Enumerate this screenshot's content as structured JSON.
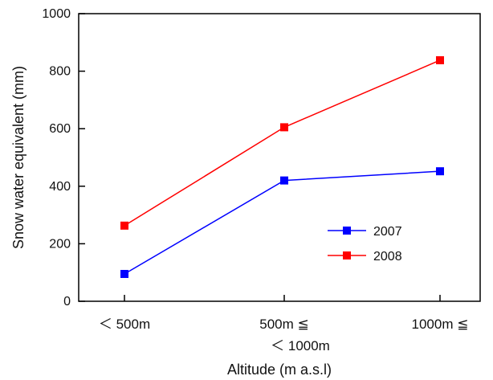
{
  "chart_data": {
    "type": "line",
    "categories": [
      "＜500m",
      "500m ≦\n＜1000m",
      "1000m ≦"
    ],
    "category_lines": [
      [
        "＜ 500m"
      ],
      [
        "500m ≦",
        "＜ 1000m"
      ],
      [
        "1000m ≦"
      ]
    ],
    "series": [
      {
        "name": "2007",
        "values": [
          95,
          420,
          452
        ],
        "color": "#0000ff"
      },
      {
        "name": "2008",
        "values": [
          263,
          605,
          838
        ],
        "color": "#ff0000"
      }
    ],
    "xlabel": "Altitude (m a.s.l)",
    "ylabel": "Snow water equivalent (mm)",
    "ylim": [
      0,
      1000
    ],
    "yticks": [
      0,
      200,
      400,
      600,
      800,
      1000
    ],
    "grid": false,
    "legend_position": "lower-right"
  }
}
